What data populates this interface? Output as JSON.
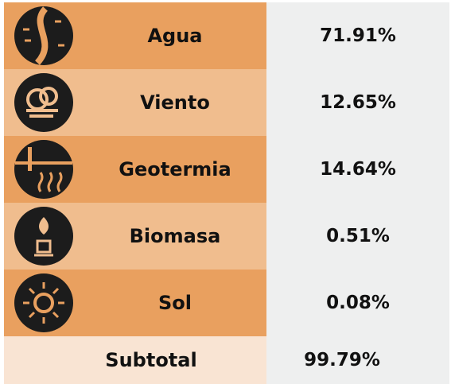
{
  "rows": [
    {
      "label": "Agua",
      "value": "71.91%"
    },
    {
      "label": "Viento",
      "value": "12.65%"
    },
    {
      "label": "Geotermia",
      "value": "14.64%"
    },
    {
      "label": "Biomasa",
      "value": "0.51%"
    },
    {
      "label": "Sol",
      "value": "0.08%"
    }
  ],
  "subtotal": {
    "label": "Subtotal",
    "value": "99.79%"
  }
}
